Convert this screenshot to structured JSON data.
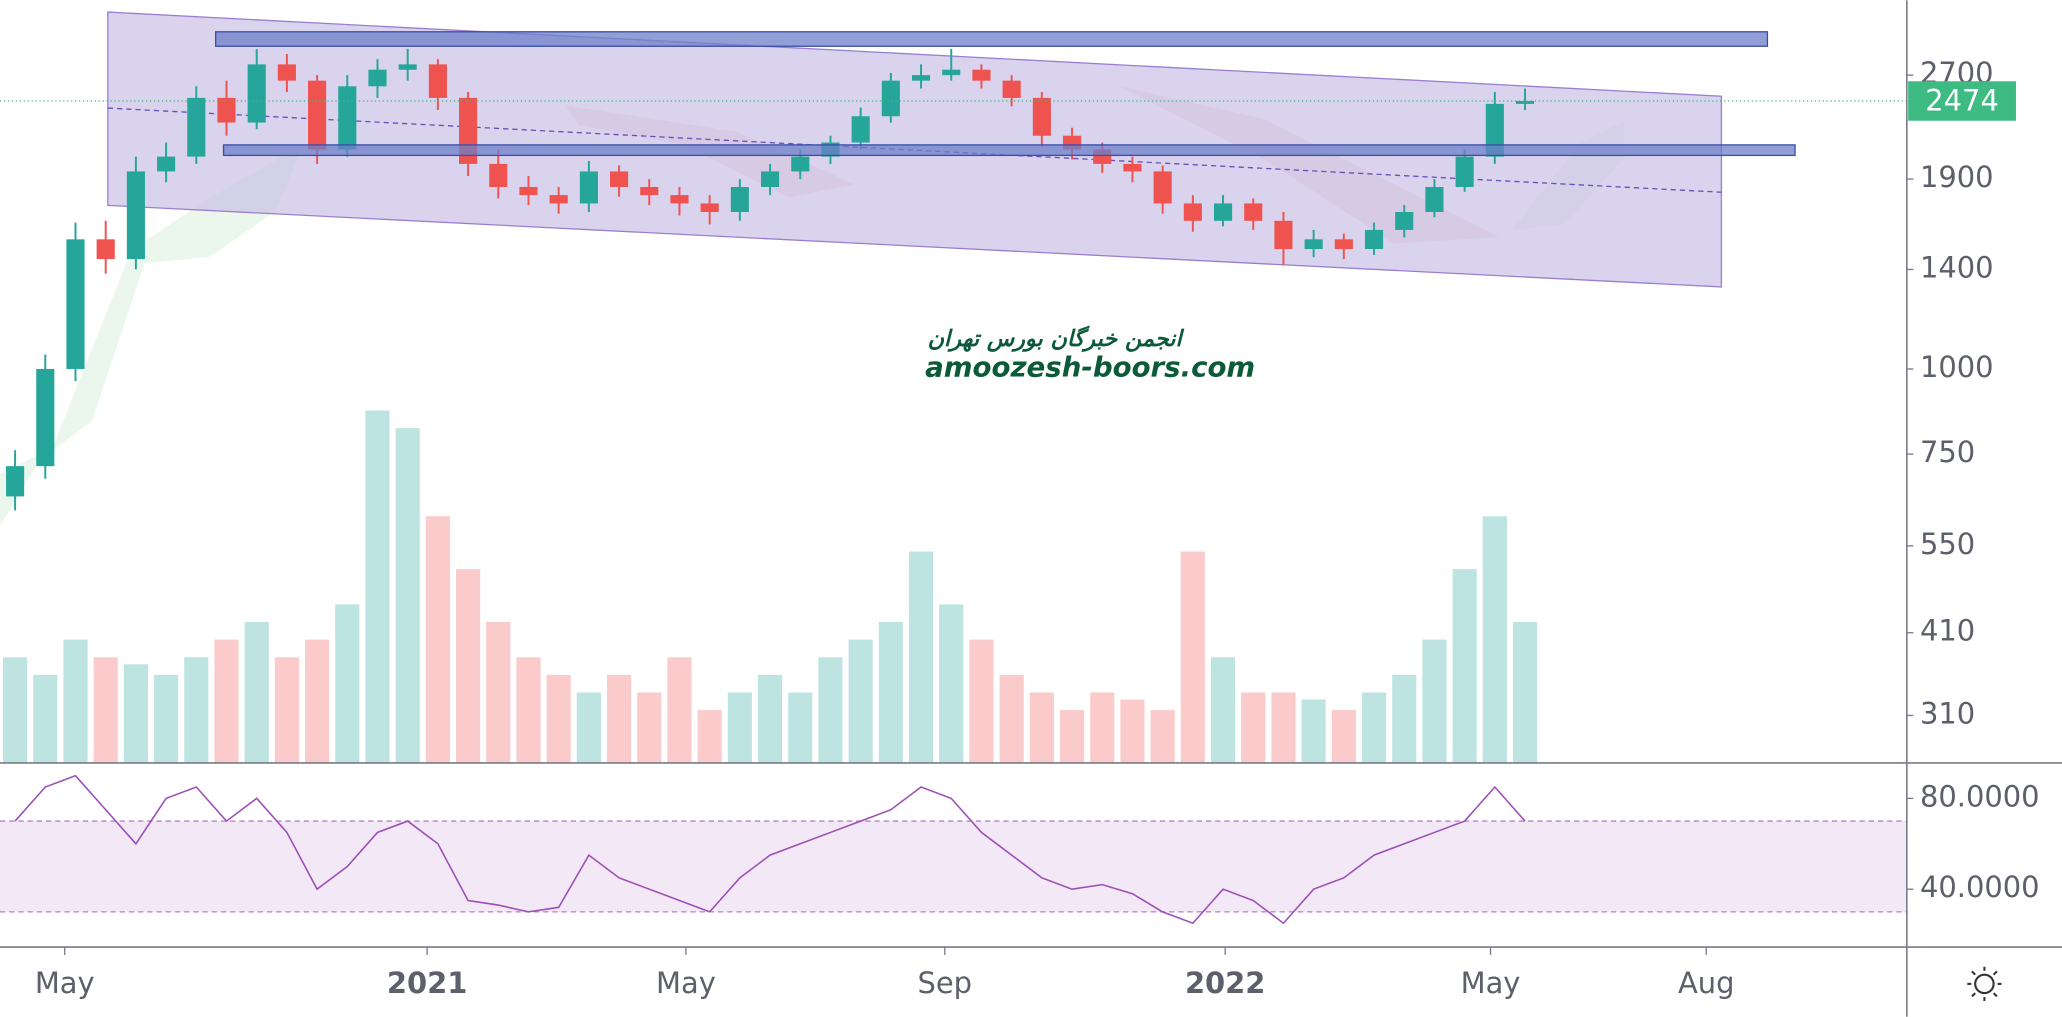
{
  "chart_data": {
    "type": "candlestick",
    "x": [
      7,
      21,
      35,
      49,
      63,
      77,
      91,
      105,
      119,
      133,
      147,
      161,
      175,
      189,
      203,
      217,
      231,
      245,
      259,
      273,
      287,
      301,
      315,
      329,
      343,
      357,
      371,
      385,
      399,
      413,
      427,
      441,
      455,
      469,
      483,
      497,
      511,
      525,
      539,
      553,
      567,
      581,
      595,
      609,
      623,
      637,
      651,
      665,
      679,
      693,
      707
    ],
    "open": [
      650,
      720,
      1000,
      1550,
      1450,
      1950,
      2050,
      2500,
      2300,
      2800,
      2650,
      2100,
      2600,
      2750,
      2800,
      2500,
      2000,
      1850,
      1800,
      1750,
      1950,
      1850,
      1800,
      1750,
      1700,
      1850,
      1950,
      2050,
      2150,
      2350,
      2650,
      2700,
      2750,
      2650,
      2500,
      2200,
      2100,
      2000,
      1950,
      1750,
      1650,
      1750,
      1650,
      1500,
      1550,
      1500,
      1600,
      1700,
      1850,
      2050,
      2450
    ],
    "high": [
      760,
      1050,
      1640,
      1650,
      2050,
      2150,
      2600,
      2650,
      2950,
      2900,
      2700,
      2700,
      2850,
      2950,
      2850,
      2550,
      2100,
      1920,
      1850,
      2020,
      1990,
      1900,
      1850,
      1800,
      1900,
      2000,
      2100,
      2200,
      2420,
      2720,
      2800,
      2950,
      2800,
      2700,
      2550,
      2260,
      2150,
      2050,
      1990,
      1800,
      1800,
      1780,
      1700,
      1600,
      1580,
      1640,
      1740,
      1900,
      2100,
      2550,
      2580
    ],
    "low": [
      620,
      690,
      960,
      1380,
      1400,
      1880,
      2000,
      2200,
      2250,
      2550,
      2000,
      2050,
      2500,
      2650,
      2400,
      1920,
      1780,
      1740,
      1690,
      1700,
      1790,
      1740,
      1680,
      1630,
      1650,
      1800,
      1900,
      2000,
      2100,
      2300,
      2580,
      2650,
      2580,
      2430,
      2120,
      2030,
      1940,
      1880,
      1690,
      1590,
      1620,
      1600,
      1420,
      1460,
      1450,
      1470,
      1560,
      1670,
      1820,
      2000,
      2400
    ],
    "close": [
      720,
      1000,
      1550,
      1450,
      1950,
      2050,
      2500,
      2300,
      2800,
      2650,
      2100,
      2600,
      2750,
      2800,
      2500,
      2000,
      1850,
      1800,
      1750,
      1950,
      1850,
      1800,
      1750,
      1700,
      1850,
      1950,
      2050,
      2150,
      2350,
      2650,
      2700,
      2750,
      2650,
      2500,
      2200,
      2100,
      2000,
      1950,
      1750,
      1650,
      1750,
      1650,
      1500,
      1550,
      1500,
      1600,
      1700,
      1850,
      2050,
      2450,
      2474
    ],
    "up_color": "#26a69a",
    "down_color": "#ef5350",
    "xlim": [
      0,
      884
    ],
    "xticks": [
      {
        "value": 30,
        "label": "May"
      },
      {
        "value": 198,
        "label": "2021"
      },
      {
        "value": 318,
        "label": "May"
      },
      {
        "value": 438,
        "label": "Sep"
      },
      {
        "value": 568,
        "label": "2022"
      },
      {
        "value": 691,
        "label": "May"
      },
      {
        "value": 791,
        "label": "Aug"
      }
    ],
    "ylim": [
      264,
      3478
    ],
    "log_scale": true,
    "yticks": [
      310,
      410,
      550,
      750,
      1000,
      1400,
      1900,
      2700
    ],
    "last_price": 2474,
    "last_price_color": "#3dbb82",
    "volume": [
      30,
      25,
      35,
      30,
      28,
      25,
      30,
      35,
      40,
      30,
      35,
      45,
      100,
      95,
      70,
      55,
      40,
      30,
      25,
      20,
      25,
      20,
      30,
      15,
      20,
      25,
      20,
      30,
      35,
      40,
      60,
      45,
      35,
      25,
      20,
      15,
      20,
      18,
      15,
      60,
      30,
      20,
      20,
      18,
      15,
      20,
      25,
      35,
      55,
      70,
      40
    ],
    "rsi": {
      "values": [
        70,
        85,
        90,
        75,
        60,
        80,
        85,
        70,
        80,
        65,
        40,
        50,
        65,
        70,
        60,
        35,
        33,
        30,
        32,
        55,
        45,
        40,
        35,
        30,
        45,
        55,
        60,
        65,
        70,
        75,
        85,
        80,
        65,
        55,
        45,
        40,
        42,
        38,
        30,
        25,
        40,
        35,
        25,
        40,
        45,
        55,
        60,
        65,
        70,
        85,
        70
      ],
      "ylim": [
        14.5,
        95.6
      ],
      "yticks": [
        {
          "value": 40,
          "label": "40.0000"
        },
        {
          "value": 80,
          "label": "80.0000"
        }
      ],
      "band": [
        30,
        70
      ],
      "color": "#9c4fb6"
    },
    "watermark": [
      "انجمن خبرگان بورس تهران",
      "amoozesh-boors.com"
    ]
  }
}
